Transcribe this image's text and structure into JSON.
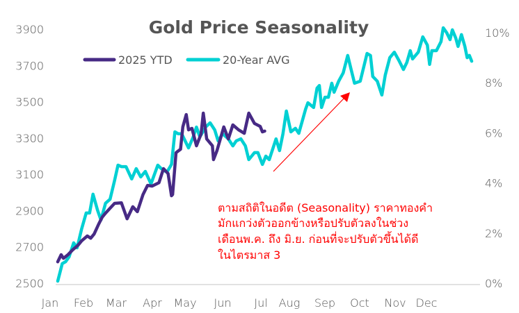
{
  "chart_data": {
    "type": "line",
    "title": "Gold Price Seasonality",
    "x_tick_labels": [
      "Jan",
      "Feb",
      "Mar",
      "Apr",
      "May",
      "Jun",
      "Jul",
      "Aug",
      "Sep",
      "Oct",
      "Nov",
      "Dec"
    ],
    "y_left": {
      "ticks": [
        2500,
        2700,
        2900,
        3100,
        3300,
        3500,
        3700,
        3900
      ],
      "range": [
        2500,
        3900
      ]
    },
    "y_right": {
      "ticks": [
        "0%",
        "2%",
        "4%",
        "6%",
        "8%",
        "10%"
      ],
      "tick_values": [
        0,
        2,
        4,
        6,
        8,
        10
      ],
      "range": [
        0,
        10
      ]
    },
    "grid": false,
    "legend_position": "top-left",
    "series": [
      {
        "name": "2025 YTD",
        "axis": "left",
        "color": "#472a85",
        "x": [
          "01-01",
          "01-04",
          "01-06",
          "01-10",
          "01-14",
          "01-19",
          "01-22",
          "01-27",
          "01-30",
          "02-02",
          "02-06",
          "02-09",
          "02-12",
          "02-16",
          "02-20",
          "02-26",
          "03-03",
          "03-08",
          "03-12",
          "03-17",
          "03-21",
          "03-25",
          "03-31",
          "04-04",
          "04-08",
          "04-11",
          "04-12",
          "04-15",
          "04-19",
          "04-21",
          "04-24",
          "04-26",
          "04-29",
          "05-03",
          "05-07",
          "05-09",
          "05-12",
          "05-17",
          "05-18",
          "05-21",
          "05-27",
          "05-31",
          "06-04",
          "06-09",
          "06-14",
          "06-18",
          "06-23",
          "06-28",
          "06-30",
          "07-02"
        ],
        "values": [
          2618,
          2657,
          2637,
          2657,
          2683,
          2710,
          2733,
          2760,
          2748,
          2771,
          2825,
          2863,
          2886,
          2913,
          2940,
          2943,
          2855,
          2921,
          2894,
          2989,
          3039,
          3035,
          3054,
          3131,
          3104,
          2982,
          2989,
          3219,
          3238,
          3361,
          3429,
          3345,
          3353,
          3257,
          3322,
          3437,
          3295,
          3257,
          3181,
          3230,
          3361,
          3295,
          3372,
          3345,
          3326,
          3437,
          3380,
          3364,
          3334,
          3338
        ]
      },
      {
        "name": "20-Year AVG",
        "axis": "right",
        "unit": "%",
        "color": "#00d0d3",
        "x": [
          "01-01",
          "01-05",
          "01-08",
          "01-11",
          "01-15",
          "01-18",
          "01-22",
          "01-26",
          "01-29",
          "02-01",
          "02-05",
          "02-08",
          "02-12",
          "02-16",
          "02-20",
          "02-23",
          "02-26",
          "03-02",
          "03-07",
          "03-11",
          "03-15",
          "03-19",
          "03-24",
          "03-30",
          "04-02",
          "04-07",
          "04-11",
          "04-14",
          "04-17",
          "04-20",
          "04-23",
          "04-26",
          "04-30",
          "05-03",
          "05-06",
          "05-11",
          "05-15",
          "05-19",
          "05-22",
          "05-26",
          "05-31",
          "06-04",
          "06-07",
          "06-11",
          "06-15",
          "06-18",
          "06-23",
          "06-26",
          "06-30",
          "07-03",
          "07-06",
          "07-08",
          "07-12",
          "07-15",
          "07-18",
          "07-21",
          "07-25",
          "07-29",
          "08-01",
          "08-07",
          "08-09",
          "08-14",
          "08-17",
          "08-19",
          "08-21",
          "08-24",
          "08-27",
          "08-30",
          "09-01",
          "09-05",
          "09-09",
          "09-13",
          "09-16",
          "09-19",
          "09-24",
          "09-30",
          "10-03",
          "10-05",
          "10-09",
          "10-13",
          "10-16",
          "10-20",
          "10-24",
          "10-28",
          "11-01",
          "11-04",
          "11-07",
          "11-09",
          "11-14",
          "11-18",
          "11-22",
          "11-24",
          "11-26",
          "11-30",
          "12-04",
          "12-06",
          "12-09",
          "12-12",
          "12-14",
          "12-17",
          "12-19",
          "12-22",
          "12-25",
          "12-27",
          "12-29",
          "12-31"
        ],
        "values": [
          0.08,
          0.78,
          0.86,
          1.05,
          1.61,
          1.41,
          2.16,
          2.8,
          2.8,
          3.55,
          2.91,
          2.52,
          3.19,
          3.35,
          4.1,
          4.71,
          4.65,
          4.65,
          4.16,
          4.57,
          4.24,
          4.46,
          3.96,
          4.71,
          4.57,
          4.43,
          4.74,
          6.04,
          5.96,
          5.96,
          5.68,
          5.4,
          5.82,
          6.23,
          5.84,
          6.23,
          6.4,
          6.12,
          5.68,
          5.96,
          5.76,
          5.48,
          5.68,
          5.76,
          5.48,
          4.93,
          5.21,
          5.21,
          4.74,
          5.07,
          4.93,
          5.21,
          5.76,
          5.29,
          5.96,
          6.87,
          6.04,
          6.18,
          5.98,
          6.95,
          7.2,
          7.01,
          7.78,
          7.89,
          7.01,
          7.42,
          7.42,
          7.98,
          7.62,
          8.06,
          8.39,
          9.09,
          8.53,
          7.98,
          8.06,
          9.17,
          9.09,
          8.25,
          8.06,
          7.51,
          8.31,
          9.0,
          9.22,
          8.89,
          8.53,
          8.81,
          9.28,
          8.95,
          9.22,
          9.83,
          9.5,
          8.73,
          9.28,
          9.28,
          9.64,
          10.19,
          10.0,
          9.72,
          10.11,
          9.78,
          9.45,
          9.92,
          9.45,
          9.0,
          9.09,
          8.86
        ]
      }
    ],
    "annotation": {
      "color": "#ff0000",
      "lines": [
        "ตามสถิติในอดีต (Seasonality) ราคาทองคำ",
        "มักแกว่งตัวออกข้างหรือปรับตัวลงในช่วง",
        "เดือนพ.ค. ถึง มิ.ย. ก่อนที่จะปรับตัวขึ้นได้ดี",
        "ในไตรมาส 3"
      ],
      "arrow": "up-right"
    }
  }
}
